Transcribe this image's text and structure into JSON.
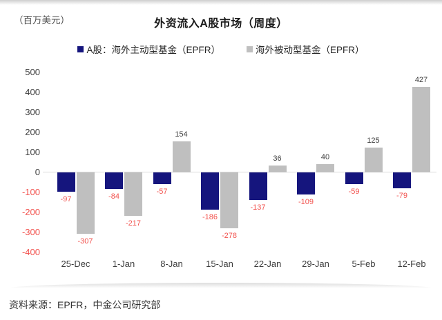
{
  "title": "外资流入A股市场（周度）",
  "unit_label": "（百万美元）",
  "source": {
    "text": "资料来源：EPFR，中金公司研究部"
  },
  "colors": {
    "active_series": "#15157d",
    "passive_series": "#bfbfbf",
    "negative_label": "#f2524e",
    "positive_label": "#3d3d3d",
    "axis_line": "#d8d8d8"
  },
  "chart_data": {
    "type": "bar",
    "title": "外资流入A股市场（周度）",
    "ylabel": "（百万美元）",
    "categories": [
      "25-Dec",
      "1-Jan",
      "8-Jan",
      "15-Jan",
      "22-Jan",
      "29-Jan",
      "5-Feb",
      "12-Feb"
    ],
    "series": [
      {
        "name": "A股：海外主动型基金（EPFR）",
        "color": "#15157d",
        "values": [
          -97,
          -84,
          -57,
          -186,
          -137,
          -109,
          -59,
          -79
        ]
      },
      {
        "name": "海外被动型基金（EPFR）",
        "color": "#bfbfbf",
        "values": [
          -307,
          -217,
          154,
          -278,
          36,
          40,
          125,
          427
        ]
      }
    ],
    "ylim": [
      -400,
      500
    ],
    "ytick_step": 100,
    "ytick_labels": [
      "500",
      "400",
      "300",
      "200",
      "100",
      "0",
      "-100",
      "-200",
      "-300",
      "-400"
    ],
    "grid": "off",
    "legend_position": "top",
    "value_labels": "on"
  }
}
